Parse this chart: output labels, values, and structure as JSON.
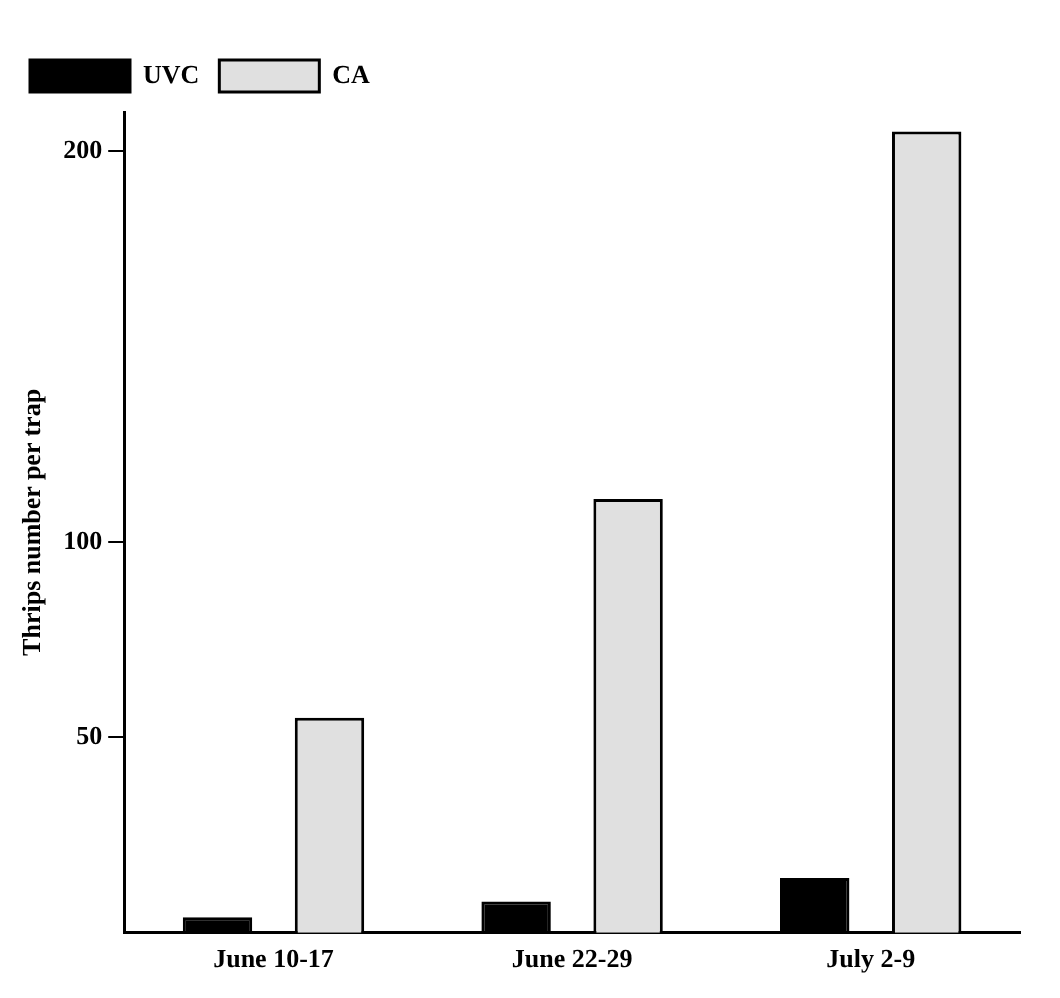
{
  "chart_data": {
    "type": "bar",
    "ylabel": "Thrips number per trap",
    "categories": [
      "June 10-17",
      "June 22-29",
      "July 2-9"
    ],
    "series": [
      {
        "name": "UVC",
        "color": "#000000",
        "values": [
          4,
          8,
          14
        ]
      },
      {
        "name": "CA",
        "color": "#e0e0e0",
        "values": [
          55,
          111,
          205
        ]
      }
    ],
    "ylim": [
      0,
      210
    ],
    "yticks": [
      50,
      100,
      200
    ],
    "grid": false,
    "legend": "top left"
  }
}
